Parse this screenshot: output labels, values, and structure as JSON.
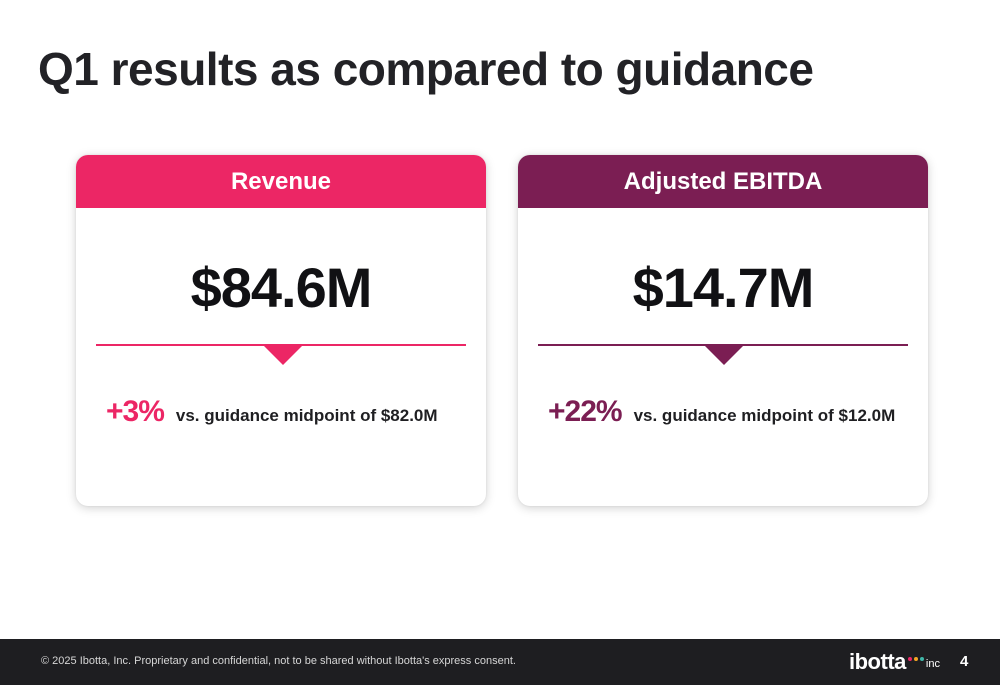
{
  "slide": {
    "title": "Q1 results as compared to guidance"
  },
  "cards": [
    {
      "header": "Revenue",
      "value": "$84.6M",
      "change": "+3%",
      "comparison": "vs. guidance midpoint of $82.0M",
      "color": "#ec2665"
    },
    {
      "header": "Adjusted EBITDA",
      "value": "$14.7M",
      "change": "+22%",
      "comparison": "vs. guidance midpoint of $12.0M",
      "color": "#7b1e53"
    }
  ],
  "footer": {
    "disclaimer": "© 2025 Ibotta, Inc. Proprietary and confidential, not to be shared without Ibotta's express consent.",
    "logo_word": "ibotta",
    "logo_suffix": "inc",
    "page_number": "4",
    "logo_dot_colors": [
      "#ec2665",
      "#f5a623",
      "#3fb6a8"
    ]
  }
}
